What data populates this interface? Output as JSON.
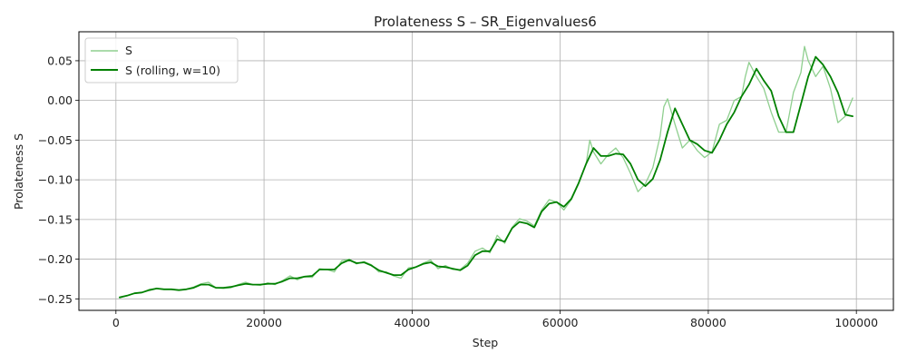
{
  "chart_data": {
    "type": "line",
    "title": "Prolateness S – SR_Eigenvalues6",
    "xlabel": "Step",
    "ylabel": "Prolateness S",
    "xlim": [
      -5000,
      105000
    ],
    "ylim": [
      -0.2645,
      0.0865
    ],
    "xticks": [
      0,
      20000,
      40000,
      60000,
      80000,
      100000
    ],
    "xtick_labels": [
      "0",
      "20000",
      "40000",
      "60000",
      "80000",
      "100000"
    ],
    "yticks": [
      -0.25,
      -0.2,
      -0.15,
      -0.1,
      -0.05,
      0.0,
      0.05
    ],
    "ytick_labels": [
      "−0.25",
      "−0.20",
      "−0.15",
      "−0.10",
      "−0.05",
      "0.00",
      "0.05"
    ],
    "grid": true,
    "legend_position": "top-left",
    "series": [
      {
        "name": "S",
        "color": "#8fcf8f",
        "x": [
          500,
          1500,
          2500,
          3500,
          4500,
          5500,
          6500,
          7500,
          8500,
          9500,
          10500,
          11500,
          12500,
          13500,
          14500,
          15500,
          16500,
          17500,
          18500,
          19500,
          20500,
          21500,
          22500,
          23500,
          24500,
          25500,
          26500,
          27500,
          28500,
          29500,
          30500,
          31500,
          32500,
          33500,
          34500,
          35500,
          36500,
          37500,
          38500,
          39500,
          40500,
          41500,
          42500,
          43500,
          44500,
          45500,
          46500,
          47500,
          48500,
          49500,
          50500,
          51500,
          52500,
          53500,
          54500,
          55500,
          56500,
          57500,
          58500,
          59500,
          60500,
          61500,
          62500,
          63500,
          64000,
          64500,
          65500,
          66500,
          67500,
          68500,
          69500,
          70500,
          71500,
          72500,
          73500,
          74000,
          74500,
          75500,
          76500,
          77500,
          78500,
          79500,
          80500,
          81500,
          82500,
          83500,
          84500,
          85000,
          85500,
          86500,
          87500,
          88500,
          89500,
          90500,
          91500,
          92500,
          93000,
          93500,
          94500,
          95500,
          96500,
          97500,
          98500,
          99500
        ],
        "values": [
          -0.249,
          -0.246,
          -0.243,
          -0.242,
          -0.238,
          -0.237,
          -0.238,
          -0.238,
          -0.239,
          -0.238,
          -0.235,
          -0.231,
          -0.229,
          -0.236,
          -0.237,
          -0.236,
          -0.232,
          -0.229,
          -0.232,
          -0.233,
          -0.23,
          -0.232,
          -0.227,
          -0.221,
          -0.226,
          -0.222,
          -0.223,
          -0.212,
          -0.213,
          -0.216,
          -0.202,
          -0.2,
          -0.206,
          -0.203,
          -0.207,
          -0.216,
          -0.216,
          -0.221,
          -0.224,
          -0.211,
          -0.21,
          -0.205,
          -0.201,
          -0.212,
          -0.208,
          -0.213,
          -0.213,
          -0.205,
          -0.19,
          -0.186,
          -0.192,
          -0.17,
          -0.18,
          -0.16,
          -0.149,
          -0.152,
          -0.158,
          -0.138,
          -0.125,
          -0.128,
          -0.138,
          -0.125,
          -0.105,
          -0.08,
          -0.05,
          -0.065,
          -0.08,
          -0.068,
          -0.06,
          -0.072,
          -0.092,
          -0.115,
          -0.105,
          -0.085,
          -0.045,
          -0.008,
          0.002,
          -0.03,
          -0.06,
          -0.05,
          -0.063,
          -0.072,
          -0.065,
          -0.03,
          -0.025,
          0.0,
          0.005,
          0.03,
          0.048,
          0.03,
          0.015,
          -0.015,
          -0.04,
          -0.04,
          0.01,
          0.035,
          0.068,
          0.05,
          0.03,
          0.043,
          0.015,
          -0.028,
          -0.02,
          0.003
        ]
      },
      {
        "name": "S (rolling, w=10)",
        "color": "#008000",
        "x": [
          500,
          1500,
          2500,
          3500,
          4500,
          5500,
          6500,
          7500,
          8500,
          9500,
          10500,
          11500,
          12500,
          13500,
          14500,
          15500,
          16500,
          17500,
          18500,
          19500,
          20500,
          21500,
          22500,
          23500,
          24500,
          25500,
          26500,
          27500,
          28500,
          29500,
          30500,
          31500,
          32500,
          33500,
          34500,
          35500,
          36500,
          37500,
          38500,
          39500,
          40500,
          41500,
          42500,
          43500,
          44500,
          45500,
          46500,
          47500,
          48500,
          49500,
          50500,
          51500,
          52500,
          53500,
          54500,
          55500,
          56500,
          57500,
          58500,
          59500,
          60500,
          61500,
          62500,
          63500,
          64500,
          65500,
          66500,
          67500,
          68500,
          69500,
          70500,
          71500,
          72500,
          73500,
          74500,
          75500,
          76500,
          77500,
          78500,
          79500,
          80500,
          81500,
          82500,
          83500,
          84500,
          85500,
          86500,
          87500,
          88500,
          89500,
          90500,
          91500,
          92500,
          93500,
          94500,
          95500,
          96500,
          97500,
          98500,
          99500
        ],
        "values": [
          -0.248,
          -0.246,
          -0.243,
          -0.242,
          -0.239,
          -0.237,
          -0.238,
          -0.238,
          -0.239,
          -0.238,
          -0.236,
          -0.232,
          -0.232,
          -0.236,
          -0.236,
          -0.235,
          -0.233,
          -0.231,
          -0.232,
          -0.232,
          -0.231,
          -0.231,
          -0.228,
          -0.224,
          -0.224,
          -0.222,
          -0.221,
          -0.213,
          -0.213,
          -0.213,
          -0.205,
          -0.201,
          -0.205,
          -0.204,
          -0.208,
          -0.214,
          -0.217,
          -0.22,
          -0.22,
          -0.213,
          -0.21,
          -0.206,
          -0.204,
          -0.209,
          -0.21,
          -0.212,
          -0.214,
          -0.208,
          -0.195,
          -0.19,
          -0.19,
          -0.175,
          -0.178,
          -0.161,
          -0.153,
          -0.155,
          -0.16,
          -0.14,
          -0.13,
          -0.128,
          -0.134,
          -0.124,
          -0.104,
          -0.08,
          -0.06,
          -0.07,
          -0.07,
          -0.067,
          -0.068,
          -0.08,
          -0.1,
          -0.108,
          -0.099,
          -0.075,
          -0.04,
          -0.01,
          -0.03,
          -0.05,
          -0.055,
          -0.063,
          -0.066,
          -0.05,
          -0.03,
          -0.015,
          0.005,
          0.02,
          0.04,
          0.025,
          0.012,
          -0.02,
          -0.04,
          -0.04,
          -0.005,
          0.03,
          0.055,
          0.045,
          0.03,
          0.01,
          -0.018,
          -0.02
        ]
      }
    ]
  }
}
